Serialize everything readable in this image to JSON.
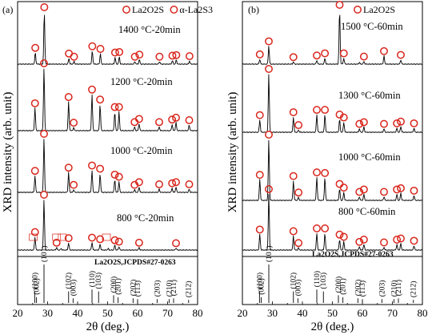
{
  "chart_data": [
    {
      "type": "line",
      "panel_label": "(a)",
      "legend": [
        "La2O2S",
        "α-La2S3"
      ],
      "xlabel": "2θ (deg.)",
      "ylabel": "XRD intensity (arb. unit)",
      "xlim": [
        20,
        80
      ],
      "xticks": [
        20,
        30,
        40,
        50,
        60,
        70,
        80
      ],
      "series": [
        {
          "name": "1400 °C-20min",
          "peaks": [
            [
              25.9,
              0.22
            ],
            [
              28.9,
              1.0
            ],
            [
              37.1,
              0.11
            ],
            [
              38.8,
              0.05
            ],
            [
              44.9,
              0.25
            ],
            [
              47.6,
              0.2
            ],
            [
              52.5,
              0.13
            ],
            [
              53.9,
              0.14
            ],
            [
              59.1,
              0.05
            ],
            [
              60.6,
              0.09
            ],
            [
              67.3,
              0.05
            ],
            [
              71.6,
              0.07
            ],
            [
              72.9,
              0.08
            ],
            [
              77.3,
              0.06
            ]
          ]
        },
        {
          "name": "1200 °C-20min",
          "peaks": [
            [
              25.8,
              0.36
            ],
            [
              28.8,
              1.0
            ],
            [
              37.0,
              0.46
            ],
            [
              38.7,
              0.05
            ],
            [
              44.8,
              0.58
            ],
            [
              47.5,
              0.42
            ],
            [
              52.4,
              0.3
            ],
            [
              53.8,
              0.3
            ],
            [
              59.0,
              0.06
            ],
            [
              60.5,
              0.11
            ],
            [
              67.2,
              0.06
            ],
            [
              71.5,
              0.1
            ],
            [
              72.8,
              0.13
            ],
            [
              77.2,
              0.09
            ]
          ]
        },
        {
          "name": "1000 °C-20min",
          "peaks": [
            [
              25.8,
              0.31
            ],
            [
              28.8,
              1.0
            ],
            [
              37.0,
              0.37
            ],
            [
              38.7,
              0.05
            ],
            [
              44.8,
              0.41
            ],
            [
              47.5,
              0.35
            ],
            [
              52.4,
              0.24
            ],
            [
              53.8,
              0.2
            ],
            [
              59.0,
              0.05
            ],
            [
              60.5,
              0.1
            ],
            [
              67.2,
              0.06
            ],
            [
              71.5,
              0.08
            ],
            [
              72.8,
              0.1
            ],
            [
              77.2,
              0.06
            ]
          ]
        },
        {
          "name": "800 °C-20min",
          "peaks": [
            [
              25.8,
              0.26
            ],
            [
              28.8,
              1.0
            ],
            [
              33.0,
              0.05
            ],
            [
              34.5,
              0.03
            ],
            [
              37.0,
              0.14
            ],
            [
              44.8,
              0.15
            ],
            [
              47.5,
              0.12
            ],
            [
              50.2,
              0.03
            ],
            [
              52.4,
              0.1
            ],
            [
              53.8,
              0.07
            ],
            [
              60.5,
              0.05
            ],
            [
              72.8,
              0.04
            ]
          ]
        }
      ],
      "secondary_markers_800": [
        25.2,
        33.0,
        34.9,
        49.6
      ],
      "reference": {
        "title": "La2O2S,JCPDS#27-0263"
      }
    },
    {
      "type": "line",
      "panel_label": "(b)",
      "legend": [
        "La2O2S"
      ],
      "xlabel": "2θ (deg.)",
      "ylabel": "XRD intensity (arb. unit)",
      "xlim": [
        20,
        80
      ],
      "xticks": [
        20,
        30,
        40,
        50,
        60,
        70,
        80
      ],
      "series": [
        {
          "name": "1500 °C-60min",
          "peaks": [
            [
              25.8,
              0.09
            ],
            [
              28.8,
              0.33
            ],
            [
              37.0,
              0.04
            ],
            [
              44.8,
              0.07
            ],
            [
              47.5,
              0.11
            ],
            [
              52.4,
              1.0
            ],
            [
              53.8,
              0.11
            ],
            [
              59.0,
              0.03
            ],
            [
              60.5,
              0.05
            ],
            [
              67.2,
              0.15
            ],
            [
              72.8,
              0.08
            ]
          ]
        },
        {
          "name": "1300 °C-60min",
          "peaks": [
            [
              25.8,
              0.21
            ],
            [
              28.8,
              1.0
            ],
            [
              37.0,
              0.26
            ],
            [
              38.7,
              0.04
            ],
            [
              44.8,
              0.3
            ],
            [
              47.5,
              0.3
            ],
            [
              52.4,
              0.22
            ],
            [
              53.8,
              0.17
            ],
            [
              59.0,
              0.06
            ],
            [
              60.5,
              0.09
            ],
            [
              67.2,
              0.06
            ],
            [
              71.5,
              0.07
            ],
            [
              72.8,
              0.1
            ],
            [
              77.2,
              0.07
            ]
          ]
        },
        {
          "name": "1000 °C-60min",
          "peaks": [
            [
              25.8,
              0.34
            ],
            [
              28.8,
              1.0
            ],
            [
              37.0,
              0.32
            ],
            [
              38.7,
              0.05
            ],
            [
              44.8,
              0.38
            ],
            [
              47.5,
              0.37
            ],
            [
              52.4,
              0.19
            ],
            [
              53.8,
              0.13
            ],
            [
              59.0,
              0.06
            ],
            [
              60.5,
              0.1
            ],
            [
              67.2,
              0.06
            ],
            [
              71.5,
              0.1
            ],
            [
              72.8,
              0.12
            ],
            [
              77.2,
              0.08
            ]
          ]
        },
        {
          "name": "800 °C-60min",
          "peaks": [
            [
              25.8,
              0.28
            ],
            [
              28.8,
              1.0
            ],
            [
              37.0,
              0.25
            ],
            [
              38.7,
              0.04
            ],
            [
              44.8,
              0.3
            ],
            [
              47.5,
              0.3
            ],
            [
              52.4,
              0.19
            ],
            [
              53.8,
              0.15
            ],
            [
              59.0,
              0.06
            ],
            [
              60.5,
              0.1
            ],
            [
              67.2,
              0.05
            ],
            [
              71.5,
              0.1
            ],
            [
              72.8,
              0.12
            ],
            [
              77.2,
              0.08
            ]
          ]
        }
      ],
      "reference": {
        "title": "La2O2S,JCPDS#27-0263"
      }
    }
  ],
  "reference_lines": [
    {
      "x": 25.7,
      "intensity": 0.3,
      "hkl": "(100)"
    },
    {
      "x": 26.3,
      "intensity": 0.15,
      "hkl": "(002)"
    },
    {
      "x": 28.8,
      "intensity": 1.0,
      "hkl": "(101)"
    },
    {
      "x": 37.0,
      "intensity": 0.3,
      "hkl": "(102)"
    },
    {
      "x": 38.5,
      "intensity": 0.12,
      "hkl": "(003)"
    },
    {
      "x": 44.8,
      "intensity": 0.35,
      "hkl": "(110)"
    },
    {
      "x": 47.0,
      "intensity": 0.3,
      "hkl": "(103)"
    },
    {
      "x": 52.0,
      "intensity": 0.2,
      "hkl": "(200)"
    },
    {
      "x": 53.5,
      "intensity": 0.15,
      "hkl": "(201)"
    },
    {
      "x": 58.5,
      "intensity": 0.12,
      "hkl": "(202)"
    },
    {
      "x": 60.0,
      "intensity": 0.1,
      "hkl": "(113)"
    },
    {
      "x": 66.5,
      "intensity": 0.1,
      "hkl": "(203)"
    },
    {
      "x": 70.5,
      "intensity": 0.1,
      "hkl": "(210)"
    },
    {
      "x": 72.0,
      "intensity": 0.12,
      "hkl": "(211)"
    },
    {
      "x": 77.0,
      "intensity": 0.08,
      "hkl": "(212)"
    }
  ],
  "colors": {
    "marker": "#d9261c",
    "line": "#000000"
  }
}
